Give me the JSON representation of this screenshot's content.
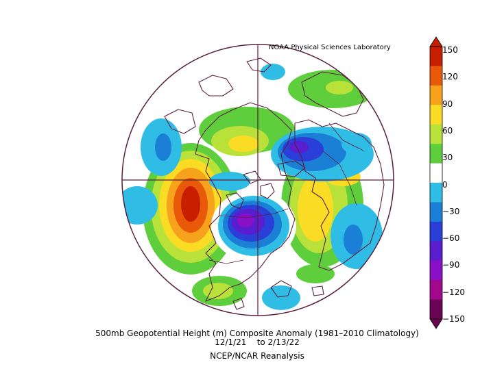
{
  "credit": "NOAA Physical Sciences Laboratory",
  "caption": {
    "line1": "500mb Geopotential Height (m) Composite Anomaly (1981–2010 Climatology)",
    "line2": "12/1/21    to 2/13/22",
    "line3": "NCEP/NCAR Reanalysis"
  },
  "colorbar": {
    "labels": [
      "150",
      "120",
      "90",
      "60",
      "30",
      "0",
      "−30",
      "−60",
      "−90",
      "−120",
      "−150"
    ],
    "colors": [
      "#c81e00",
      "#e85a0a",
      "#f7a21c",
      "#fbdc24",
      "#b8e23a",
      "#5fce3c",
      "#ffffff",
      "#2fbde6",
      "#1c7fd6",
      "#2a3ed8",
      "#5a1ed0",
      "#8a10c6",
      "#a2088c",
      "#6a0454"
    ]
  },
  "map": {
    "background": "#ffffff",
    "outline_color": "#5a1e3c"
  }
}
